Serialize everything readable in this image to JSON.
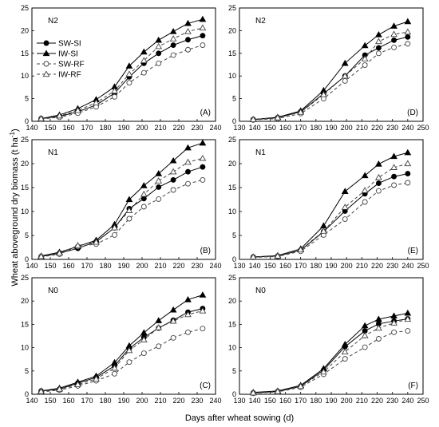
{
  "figure": {
    "ylabel_main": "Wheat aboveground dry biomass (t ha",
    "ylabel_sup": "-1",
    "ylabel_close": ")",
    "xlabel": "Days after wheat sowing (d)"
  },
  "legend": {
    "placement": "top-left of panel A",
    "entries": [
      {
        "name": "SW-SI",
        "marker": "filled-circle",
        "line": "solid"
      },
      {
        "name": "IW-SI",
        "marker": "filled-triangle",
        "line": "solid"
      },
      {
        "name": "SW-RF",
        "marker": "open-circle",
        "line": "dashed"
      },
      {
        "name": "IW-RF",
        "marker": "open-triangle",
        "line": "dashed"
      }
    ]
  },
  "chart_data": [
    {
      "type": "line",
      "panel": "A",
      "label": "N2",
      "xlim": [
        140,
        240
      ],
      "ylim": [
        0,
        25
      ],
      "xticks": [
        140,
        150,
        160,
        170,
        180,
        190,
        200,
        210,
        220,
        230,
        240
      ],
      "yticks": [
        0,
        5,
        10,
        15,
        20,
        25
      ],
      "x": [
        145,
        155,
        165,
        175,
        185,
        193,
        201,
        209,
        217,
        225,
        233
      ],
      "series": [
        {
          "name": "SW-SI",
          "values": [
            0.6,
            1.1,
            2.1,
            3.6,
            6.2,
            9.8,
            12.8,
            15.0,
            16.8,
            18.0,
            18.9
          ]
        },
        {
          "name": "IW-SI",
          "values": [
            0.6,
            1.4,
            2.8,
            4.8,
            7.6,
            12.2,
            15.3,
            17.9,
            19.8,
            21.6,
            22.5
          ]
        },
        {
          "name": "SW-RF",
          "values": [
            0.5,
            0.9,
            1.8,
            3.2,
            5.4,
            8.5,
            10.7,
            12.8,
            14.6,
            15.8,
            16.8
          ]
        },
        {
          "name": "IW-RF",
          "values": [
            0.6,
            1.2,
            2.4,
            4.1,
            6.7,
            10.4,
            13.4,
            16.5,
            18.2,
            19.8,
            20.6
          ]
        }
      ]
    },
    {
      "type": "line",
      "panel": "D",
      "label": "N2",
      "xlim": [
        130,
        250
      ],
      "ylim": [
        0,
        25
      ],
      "xticks": [
        130,
        140,
        150,
        160,
        170,
        180,
        190,
        200,
        210,
        220,
        230,
        240,
        250
      ],
      "yticks": [
        0,
        5,
        10,
        15,
        20,
        25
      ],
      "x": [
        139,
        155,
        170,
        185,
        199,
        212,
        221,
        231,
        240
      ],
      "series": [
        {
          "name": "SW-SI",
          "values": [
            0.4,
            0.8,
            2.1,
            6.1,
            10.0,
            14.6,
            16.2,
            17.9,
            18.6
          ]
        },
        {
          "name": "IW-SI",
          "values": [
            0.4,
            0.9,
            2.3,
            6.8,
            12.8,
            16.7,
            19.1,
            21.0,
            22.0
          ]
        },
        {
          "name": "SW-RF",
          "values": [
            0.3,
            0.6,
            1.7,
            5.0,
            8.9,
            12.4,
            15.0,
            16.3,
            17.1
          ]
        },
        {
          "name": "IW-RF",
          "values": [
            0.4,
            0.8,
            2.0,
            5.9,
            10.0,
            13.8,
            17.6,
            19.2,
            19.7
          ]
        }
      ]
    },
    {
      "type": "line",
      "panel": "B",
      "label": "N1",
      "xlim": [
        140,
        240
      ],
      "ylim": [
        0,
        25
      ],
      "xticks": [
        140,
        150,
        160,
        170,
        180,
        190,
        200,
        210,
        220,
        230,
        240
      ],
      "yticks": [
        0,
        5,
        10,
        15,
        20,
        25
      ],
      "x": [
        145,
        155,
        165,
        175,
        185,
        193,
        201,
        209,
        217,
        225,
        233
      ],
      "series": [
        {
          "name": "SW-SI",
          "values": [
            0.6,
            1.3,
            2.3,
            3.7,
            6.6,
            10.6,
            12.7,
            15.1,
            16.6,
            18.3,
            19.3
          ]
        },
        {
          "name": "IW-SI",
          "values": [
            0.7,
            1.5,
            2.7,
            4.0,
            7.3,
            12.5,
            15.4,
            17.9,
            20.6,
            23.3,
            24.3
          ]
        },
        {
          "name": "SW-RF",
          "values": [
            0.5,
            1.1,
            2.7,
            3.2,
            5.1,
            8.5,
            11.0,
            12.6,
            14.5,
            15.8,
            16.6
          ]
        },
        {
          "name": "IW-RF",
          "values": [
            0.6,
            1.3,
            2.9,
            3.6,
            6.6,
            10.2,
            13.6,
            16.4,
            18.3,
            20.3,
            21.1
          ]
        }
      ]
    },
    {
      "type": "line",
      "panel": "E",
      "label": "N1",
      "xlim": [
        130,
        250
      ],
      "ylim": [
        0,
        25
      ],
      "xticks": [
        130,
        140,
        150,
        160,
        170,
        180,
        190,
        200,
        210,
        220,
        230,
        240,
        250
      ],
      "yticks": [
        0,
        5,
        10,
        15,
        20,
        25
      ],
      "x": [
        139,
        155,
        170,
        185,
        199,
        212,
        221,
        231,
        240
      ],
      "series": [
        {
          "name": "SW-SI",
          "values": [
            0.5,
            0.7,
            1.9,
            5.8,
            10.1,
            13.7,
            15.9,
            17.3,
            17.9
          ]
        },
        {
          "name": "IW-SI",
          "values": [
            0.5,
            0.8,
            2.2,
            7.0,
            14.2,
            17.5,
            19.9,
            21.5,
            22.3
          ]
        },
        {
          "name": "SW-RF",
          "values": [
            0.4,
            0.6,
            1.7,
            5.1,
            8.4,
            12.0,
            14.3,
            15.5,
            16.0
          ]
        },
        {
          "name": "IW-RF",
          "values": [
            0.5,
            0.7,
            2.0,
            5.9,
            10.9,
            14.4,
            17.1,
            19.2,
            20.0
          ]
        }
      ]
    },
    {
      "type": "line",
      "panel": "C",
      "label": "N0",
      "xlim": [
        140,
        240
      ],
      "ylim": [
        0,
        25
      ],
      "xticks": [
        140,
        150,
        160,
        170,
        180,
        190,
        200,
        210,
        220,
        230,
        240
      ],
      "yticks": [
        0,
        5,
        10,
        15,
        20,
        25
      ],
      "x": [
        145,
        155,
        165,
        175,
        185,
        193,
        201,
        209,
        217,
        225,
        233
      ],
      "series": [
        {
          "name": "SW-SI",
          "values": [
            0.7,
            1.1,
            2.4,
            3.6,
            6.1,
            9.8,
            12.2,
            14.2,
            15.9,
            17.6,
            18.4
          ]
        },
        {
          "name": "IW-SI",
          "values": [
            0.7,
            1.3,
            2.6,
            3.9,
            6.8,
            10.4,
            13.2,
            15.8,
            18.1,
            20.3,
            21.3
          ]
        },
        {
          "name": "SW-RF",
          "values": [
            0.5,
            0.9,
            1.8,
            2.9,
            4.4,
            6.9,
            8.8,
            10.3,
            12.1,
            13.3,
            14.1
          ]
        },
        {
          "name": "IW-RF",
          "values": [
            0.6,
            1.1,
            2.1,
            3.3,
            5.6,
            9.4,
            11.7,
            14.3,
            15.7,
            17.1,
            17.9
          ]
        }
      ]
    },
    {
      "type": "line",
      "panel": "F",
      "label": "N0",
      "xlim": [
        130,
        250
      ],
      "ylim": [
        0,
        25
      ],
      "xticks": [
        130,
        140,
        150,
        160,
        170,
        180,
        190,
        200,
        210,
        220,
        230,
        240,
        250
      ],
      "yticks": [
        0,
        5,
        10,
        15,
        20,
        25
      ],
      "x": [
        139,
        155,
        170,
        185,
        199,
        212,
        221,
        231,
        240
      ],
      "series": [
        {
          "name": "SW-SI",
          "values": [
            0.3,
            0.6,
            1.7,
            5.2,
            10.2,
            13.6,
            15.1,
            15.7,
            16.2
          ]
        },
        {
          "name": "IW-SI",
          "values": [
            0.4,
            0.7,
            1.9,
            5.5,
            10.7,
            14.7,
            16.1,
            16.8,
            17.4
          ]
        },
        {
          "name": "SW-RF",
          "values": [
            0.2,
            0.5,
            1.5,
            4.3,
            7.6,
            10.1,
            11.9,
            13.3,
            13.6
          ]
        },
        {
          "name": "IW-RF",
          "values": [
            0.3,
            0.6,
            1.7,
            4.8,
            9.1,
            12.6,
            14.2,
            15.3,
            16.1
          ]
        }
      ]
    }
  ]
}
